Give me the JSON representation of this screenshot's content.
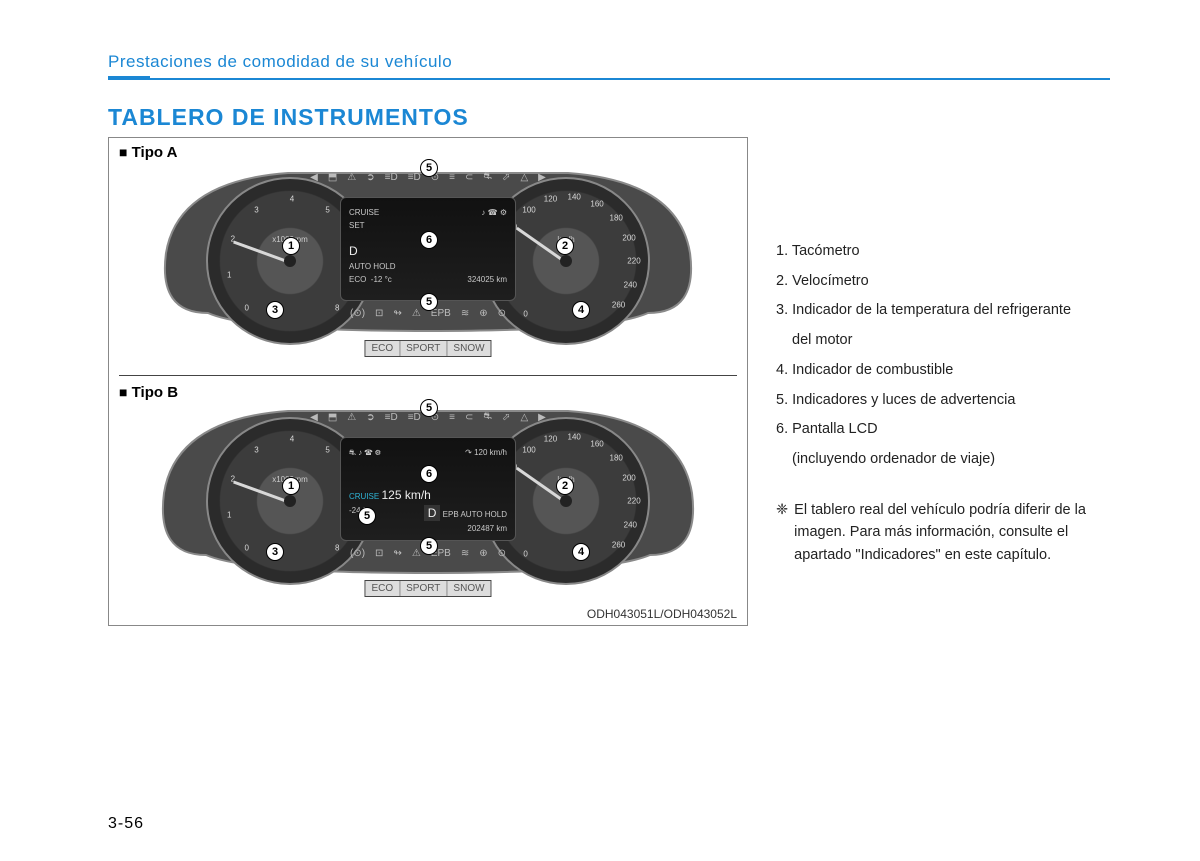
{
  "header": "Prestaciones de comodidad de su vehículo",
  "title": "TABLERO DE INSTRUMENTOS",
  "page_number": "3-56",
  "image_ref": "ODH043051L/ODH043052L",
  "type_labels": {
    "a": "Tipo A",
    "b": "Tipo B"
  },
  "modes": [
    "ECO",
    "SPORT",
    "SNOW"
  ],
  "tach": {
    "unit": "x1000rpm",
    "ticks": [
      "0",
      "1",
      "2",
      "3",
      "4",
      "5",
      "6",
      "7",
      "8"
    ],
    "needle_angle_deg": 200
  },
  "speedo": {
    "unit": "km/h",
    "ticks": [
      "0",
      "20",
      "40",
      "60",
      "80",
      "100",
      "120",
      "140",
      "160",
      "180",
      "200",
      "220",
      "240",
      "260"
    ],
    "needle_angle_deg": 215
  },
  "center_a": {
    "left_top": "CRUISE",
    "left_top2": "SET",
    "gear": "D",
    "auto_hold": "AUTO HOLD",
    "eco": "ECO",
    "temp": "-12 °c",
    "odo": "324025 km"
  },
  "center_b": {
    "cruise_speed": "125 km/h",
    "cruise_label": "CRUISE",
    "gear": "D",
    "epb": "EPB",
    "auto_hold": "AUTO HOLD",
    "temp": "-24 °c",
    "odo": "202487 km",
    "top_right": "120 km/h"
  },
  "subgauges": {
    "temp_label": "50",
    "temp_hi": "130",
    "fuel_e": "0",
    "fuel_f": "1"
  },
  "warn_icons_top": [
    "◀",
    "⬒",
    "⚠",
    "➲",
    "≡D",
    "≡D",
    "⊙",
    "≡",
    "⊂",
    "⛐",
    "⬀",
    "△",
    "▶"
  ],
  "warn_icons_bot": [
    "(⊙)",
    "⊡",
    "↬",
    "⚠",
    "EPB",
    "≋",
    "⊕",
    "⊙"
  ],
  "callouts_a": {
    "c1": "1",
    "c2": "2",
    "c3": "3",
    "c4": "4",
    "c5a": "5",
    "c5b": "5",
    "c6": "6"
  },
  "callouts_b": {
    "c1": "1",
    "c2": "2",
    "c3": "3",
    "c4": "4",
    "c5a": "5",
    "c5b": "5",
    "c5c": "5",
    "c6": "6"
  },
  "legend": [
    "1. Tacómetro",
    "2. Velocímetro",
    "3. Indicador de la temperatura del refrigerante",
    "   del motor",
    "4. Indicador de combustible",
    "5. Indicadores y luces de advertencia",
    "6. Pantalla LCD",
    "   (incluyendo ordenador de viaje)"
  ],
  "note_marker": "❈",
  "note": "El tablero real del vehículo podría diferir de la imagen. Para más información, consulte el apartado \"Indicadores\" en este capítulo.",
  "colors": {
    "accent": "#1b87d4",
    "cluster_bg": "#3c3c3c",
    "cluster_border": "#888888",
    "screen_bg": "#151515",
    "text": "#222222"
  }
}
